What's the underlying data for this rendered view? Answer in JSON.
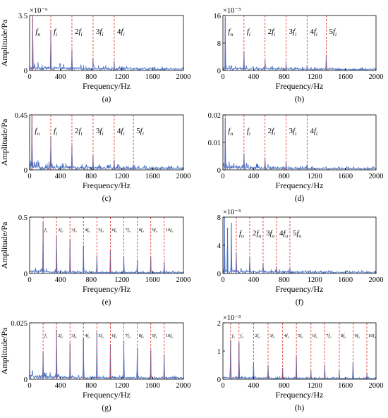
{
  "chart_data": [
    {
      "type": "line",
      "panel_label": "(a)",
      "xlabel": "Frequency/Hz",
      "ylabel": "Amplitude/Pa",
      "exponent_label": "×10⁻⁶",
      "xlim": [
        0,
        2000
      ],
      "ylim": [
        0,
        3.5
      ],
      "xticks": [
        "0",
        "400",
        "800",
        "1200",
        "1600",
        "2000"
      ],
      "yticks": [
        {
          "v": 0,
          "t": "0"
        },
        {
          "v": 3.5,
          "t": "3.5"
        }
      ],
      "markers": [
        {
          "x": 40,
          "label": "f_n"
        },
        {
          "x": 275,
          "label": "f_i"
        },
        {
          "x": 550,
          "label": "2f_i"
        },
        {
          "x": 825,
          "label": "3f_i"
        },
        {
          "x": 1100,
          "label": "4f_i"
        }
      ],
      "peaks": [
        {
          "x": 40,
          "y": 3.4
        },
        {
          "x": 275,
          "y": 2.6
        },
        {
          "x": 550,
          "y": 1.3
        },
        {
          "x": 825,
          "y": 0.8
        },
        {
          "x": 1100,
          "y": 0.6
        }
      ],
      "noise_level": 0.35,
      "decay": 0.6,
      "marker_style": "large"
    },
    {
      "type": "line",
      "panel_label": "(b)",
      "xlabel": "Frequency/Hz",
      "ylabel": "",
      "exponent_label": "×10⁻³",
      "xlim": [
        0,
        2000
      ],
      "ylim": [
        0,
        16
      ],
      "xticks": [
        "0",
        "400",
        "800",
        "1200",
        "1600",
        "2000"
      ],
      "yticks": [
        {
          "v": 0,
          "t": "0"
        },
        {
          "v": 8,
          "t": "8"
        },
        {
          "v": 16,
          "t": "16"
        }
      ],
      "markers": [
        {
          "x": 30,
          "label": "f_n"
        },
        {
          "x": 275,
          "label": "f_i"
        },
        {
          "x": 550,
          "label": "2f_i"
        },
        {
          "x": 825,
          "label": "3f_i"
        },
        {
          "x": 1100,
          "label": "4f_i"
        },
        {
          "x": 1350,
          "label": "5f_i"
        }
      ],
      "peaks": [
        {
          "x": 30,
          "y": 15.5
        },
        {
          "x": 275,
          "y": 5.5
        },
        {
          "x": 550,
          "y": 3.0
        },
        {
          "x": 825,
          "y": 2.0
        },
        {
          "x": 1100,
          "y": 1.5
        },
        {
          "x": 1350,
          "y": 4.5
        }
      ],
      "noise_level": 1.0,
      "decay": 0.8,
      "marker_style": "large"
    },
    {
      "type": "line",
      "panel_label": "(c)",
      "xlabel": "Frequency/Hz",
      "ylabel": "Amplitude/Pa",
      "exponent_label": "",
      "xlim": [
        0,
        2000
      ],
      "ylim": [
        0,
        0.45
      ],
      "xticks": [
        "0",
        "400",
        "800",
        "1200",
        "1600",
        "2000"
      ],
      "yticks": [
        {
          "v": 0,
          "t": "0"
        },
        {
          "v": 0.45,
          "t": "0.45"
        }
      ],
      "markers": [
        {
          "x": 30,
          "label": "f_n"
        },
        {
          "x": 275,
          "label": "f_i"
        },
        {
          "x": 550,
          "label": "2f_i"
        },
        {
          "x": 825,
          "label": "3f_i"
        },
        {
          "x": 1100,
          "label": "4f_i"
        },
        {
          "x": 1350,
          "label": "5f_i"
        }
      ],
      "peaks": [
        {
          "x": 30,
          "y": 0.44
        },
        {
          "x": 275,
          "y": 0.27
        },
        {
          "x": 550,
          "y": 0.2
        },
        {
          "x": 825,
          "y": 0.12
        },
        {
          "x": 1100,
          "y": 0.08
        },
        {
          "x": 1350,
          "y": 0.04
        }
      ],
      "noise_level": 0.05,
      "decay": 0.7,
      "marker_style": "large"
    },
    {
      "type": "line",
      "panel_label": "(d)",
      "xlabel": "Frequency/Hz",
      "ylabel": "",
      "exponent_label": "",
      "xlim": [
        0,
        2000
      ],
      "ylim": [
        0,
        0.02
      ],
      "xticks": [
        "0",
        "400",
        "800",
        "1200",
        "1600",
        "2000"
      ],
      "yticks": [
        {
          "v": 0,
          "t": "0"
        },
        {
          "v": 0.01,
          "t": "0.01"
        },
        {
          "v": 0.02,
          "t": "0.02"
        }
      ],
      "markers": [
        {
          "x": 30,
          "label": "f_n"
        },
        {
          "x": 275,
          "label": "f_i"
        },
        {
          "x": 550,
          "label": "2f_i"
        },
        {
          "x": 825,
          "label": "3f_i"
        },
        {
          "x": 1100,
          "label": "4f_i"
        }
      ],
      "peaks": [
        {
          "x": 30,
          "y": 0.019
        },
        {
          "x": 275,
          "y": 0.006
        },
        {
          "x": 550,
          "y": 0.004
        },
        {
          "x": 825,
          "y": 0.003
        },
        {
          "x": 1100,
          "y": 0.002
        }
      ],
      "noise_level": 0.002,
      "decay": 0.4,
      "marker_style": "large"
    },
    {
      "type": "line",
      "panel_label": "(e)",
      "xlabel": "Frequency/Hz",
      "ylabel": "Amplitude/Pa",
      "exponent_label": "",
      "xlim": [
        0,
        2000
      ],
      "ylim": [
        0,
        0.5
      ],
      "xticks": [
        "0",
        "400",
        "800",
        "1200",
        "1600",
        "2000"
      ],
      "yticks": [
        {
          "v": 0,
          "t": "0"
        },
        {
          "v": 0.5,
          "t": "0.5"
        }
      ],
      "markers": [
        {
          "x": 175,
          "label": "f_o"
        },
        {
          "x": 350,
          "label": "2f_o"
        },
        {
          "x": 525,
          "label": "3f_o"
        },
        {
          "x": 700,
          "label": "4f_o"
        },
        {
          "x": 875,
          "label": "5f_o"
        },
        {
          "x": 1050,
          "label": "6f_o"
        },
        {
          "x": 1225,
          "label": "7f_o"
        },
        {
          "x": 1400,
          "label": "8f_o"
        },
        {
          "x": 1575,
          "label": "9f_o"
        },
        {
          "x": 1750,
          "label": "10f_o"
        }
      ],
      "peaks": [
        {
          "x": 175,
          "y": 0.45
        },
        {
          "x": 350,
          "y": 0.33
        },
        {
          "x": 525,
          "y": 0.3
        },
        {
          "x": 700,
          "y": 0.25
        },
        {
          "x": 875,
          "y": 0.16
        },
        {
          "x": 1050,
          "y": 0.2
        },
        {
          "x": 1225,
          "y": 0.15
        },
        {
          "x": 1400,
          "y": 0.12
        },
        {
          "x": 1575,
          "y": 0.15
        },
        {
          "x": 1750,
          "y": 0.1
        }
      ],
      "noise_level": 0.04,
      "decay": 0.2,
      "marker_style": "small"
    },
    {
      "type": "line",
      "panel_label": "(f)",
      "xlabel": "Frequency/Hz",
      "ylabel": "",
      "exponent_label": "×10⁻³",
      "xlim": [
        0,
        2000
      ],
      "ylim": [
        0,
        8
      ],
      "xticks": [
        "0",
        "400",
        "800",
        "1200",
        "1600",
        "2000"
      ],
      "yticks": [
        {
          "v": 0,
          "t": "0"
        },
        {
          "v": 4,
          "t": "4"
        },
        {
          "v": 8,
          "t": "8"
        }
      ],
      "markers": [
        {
          "x": 175,
          "label": "f_o"
        },
        {
          "x": 350,
          "label": "2f_o"
        },
        {
          "x": 525,
          "label": "3f_o"
        },
        {
          "x": 700,
          "label": "4f_o"
        },
        {
          "x": 875,
          "label": "5f_o"
        }
      ],
      "peaks": [
        {
          "x": 20,
          "y": 8.0
        },
        {
          "x": 60,
          "y": 6.5
        },
        {
          "x": 110,
          "y": 7.2
        },
        {
          "x": 175,
          "y": 3.0
        },
        {
          "x": 350,
          "y": 2.2
        },
        {
          "x": 525,
          "y": 1.5
        },
        {
          "x": 700,
          "y": 1.0
        },
        {
          "x": 875,
          "y": 0.8
        }
      ],
      "noise_level": 0.6,
      "decay": 0.5,
      "marker_style": "large"
    },
    {
      "type": "line",
      "panel_label": "(g)",
      "xlabel": "Frequency/Hz",
      "ylabel": "Amplitude/Pa",
      "exponent_label": "",
      "xlim": [
        0,
        2000
      ],
      "ylim": [
        0,
        0.025
      ],
      "xticks": [
        "0",
        "400",
        "800",
        "1200",
        "1600",
        "2000"
      ],
      "yticks": [
        {
          "v": 0,
          "t": "0"
        },
        {
          "v": 0.025,
          "t": "0.025"
        }
      ],
      "markers": [
        {
          "x": 175,
          "label": "f_o"
        },
        {
          "x": 350,
          "label": "2f_o"
        },
        {
          "x": 525,
          "label": "3f_o"
        },
        {
          "x": 700,
          "label": "4f_o"
        },
        {
          "x": 875,
          "label": "5f_o"
        },
        {
          "x": 1050,
          "label": "6f_o"
        },
        {
          "x": 1225,
          "label": "7f_o"
        },
        {
          "x": 1400,
          "label": "8f_o"
        },
        {
          "x": 1575,
          "label": "9f_o"
        },
        {
          "x": 1750,
          "label": "10f_o"
        }
      ],
      "peaks": [
        {
          "x": 175,
          "y": 0.012
        },
        {
          "x": 350,
          "y": 0.022
        },
        {
          "x": 525,
          "y": 0.016
        },
        {
          "x": 700,
          "y": 0.018
        },
        {
          "x": 875,
          "y": 0.021
        },
        {
          "x": 1050,
          "y": 0.015
        },
        {
          "x": 1225,
          "y": 0.017
        },
        {
          "x": 1400,
          "y": 0.014
        },
        {
          "x": 1575,
          "y": 0.013
        },
        {
          "x": 1750,
          "y": 0.011
        }
      ],
      "noise_level": 0.003,
      "decay": 0.2,
      "marker_style": "small"
    },
    {
      "type": "line",
      "panel_label": "(h)",
      "xlabel": "Frequency/Hz",
      "ylabel": "",
      "exponent_label": "×10⁻³",
      "xlim": [
        0,
        2000
      ],
      "ylim": [
        0,
        2
      ],
      "xticks": [
        "0",
        "400",
        "800",
        "1200",
        "1600",
        "2000"
      ],
      "yticks": [
        {
          "v": 0,
          "t": "0"
        },
        {
          "v": 1,
          "t": "1"
        },
        {
          "v": 2,
          "t": "2"
        }
      ],
      "markers": [
        {
          "x": 100,
          "label": "f_o"
        },
        {
          "x": 210,
          "label": "f_o"
        },
        {
          "x": 400,
          "label": "2f_o"
        },
        {
          "x": 590,
          "label": "3f_o"
        },
        {
          "x": 780,
          "label": "4f_o"
        },
        {
          "x": 960,
          "label": "5f_o"
        },
        {
          "x": 1150,
          "label": "6f_o"
        },
        {
          "x": 1330,
          "label": "7f_o"
        },
        {
          "x": 1520,
          "label": "8f_o"
        },
        {
          "x": 1700,
          "label": "9f_o"
        },
        {
          "x": 1880,
          "label": "10f_o"
        }
      ],
      "peaks": [
        {
          "x": 100,
          "y": 1.4
        },
        {
          "x": 210,
          "y": 1.3
        },
        {
          "x": 400,
          "y": 0.6
        },
        {
          "x": 590,
          "y": 0.5
        },
        {
          "x": 780,
          "y": 0.4
        },
        {
          "x": 960,
          "y": 0.8
        },
        {
          "x": 1150,
          "y": 0.3
        },
        {
          "x": 1330,
          "y": 0.5
        },
        {
          "x": 1520,
          "y": 0.3
        },
        {
          "x": 1700,
          "y": 0.6
        },
        {
          "x": 1880,
          "y": 0.2
        }
      ],
      "noise_level": 0.1,
      "decay": 0.3,
      "marker_style": "small"
    }
  ],
  "colors": {
    "signal": "#4a72c4",
    "marker": "#e0443c",
    "axis": "#000000",
    "text": "#000000"
  }
}
